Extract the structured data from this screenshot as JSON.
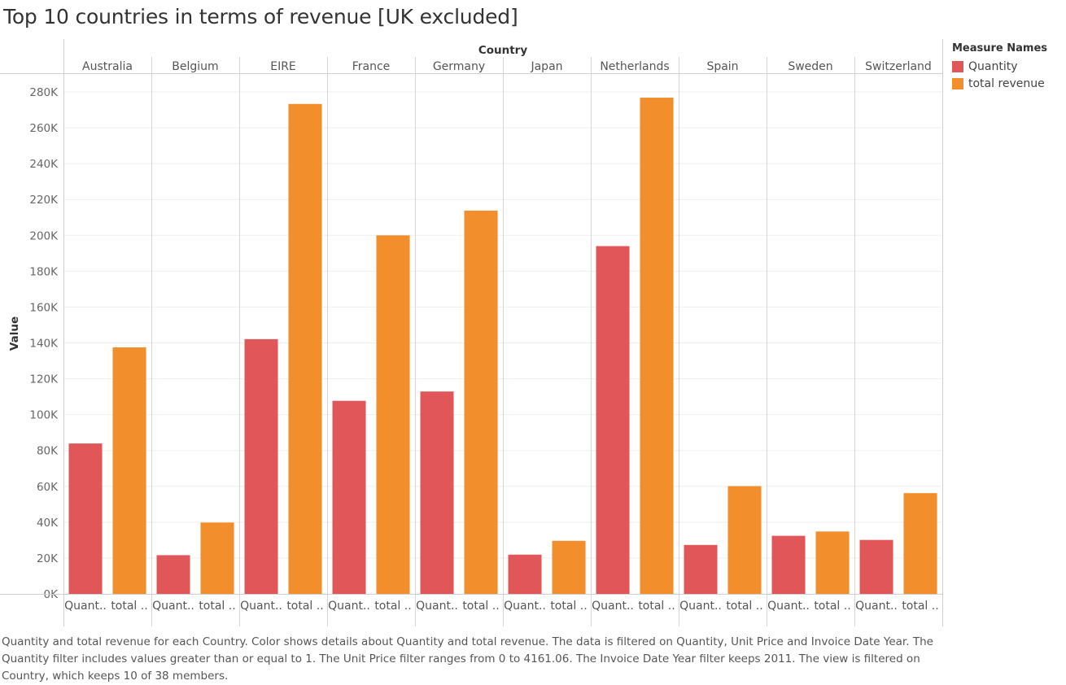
{
  "title": "Top 10 countries in terms of revenue [UK excluded]",
  "caption": "Quantity and total revenue for each Country.  Color shows details about Quantity and total revenue. The data is filtered on Quantity, Unit Price and Invoice Date Year. The Quantity filter includes values greater than or equal to 1. The Unit Price filter ranges from 0 to 4161.06. The Invoice Date Year filter keeps 2011. The view is filtered on Country, which keeps 10 of 38 members.",
  "legend": {
    "title": "Measure Names",
    "items": [
      {
        "label": "Quantity",
        "color": "#e15759"
      },
      {
        "label": "total revenue",
        "color": "#f28e2b"
      }
    ]
  },
  "chart_data": {
    "type": "bar",
    "column_header": "Country",
    "ylabel": "Value",
    "ylim": [
      0,
      280000
    ],
    "yticks": [
      0,
      20000,
      40000,
      60000,
      80000,
      100000,
      120000,
      140000,
      160000,
      180000,
      200000,
      220000,
      240000,
      260000,
      280000
    ],
    "ytick_labels": [
      "0K",
      "20K",
      "40K",
      "60K",
      "80K",
      "100K",
      "120K",
      "140K",
      "160K",
      "180K",
      "200K",
      "220K",
      "240K",
      "260K",
      "280K"
    ],
    "grid": true,
    "categories": [
      "Australia",
      "Belgium",
      "EIRE",
      "France",
      "Germany",
      "Japan",
      "Netherlands",
      "Spain",
      "Sweden",
      "Switzerland"
    ],
    "series": [
      {
        "name": "Quantity",
        "axis_label": "Quant..",
        "color": "#e15759",
        "values": [
          83900,
          21600,
          142100,
          107700,
          112900,
          21900,
          194000,
          27300,
          32400,
          30100
        ]
      },
      {
        "name": "total revenue",
        "axis_label": "total ..",
        "color": "#f28e2b",
        "values": [
          137500,
          39800,
          273300,
          200000,
          213800,
          29600,
          276800,
          60100,
          34800,
          56200
        ]
      }
    ]
  }
}
